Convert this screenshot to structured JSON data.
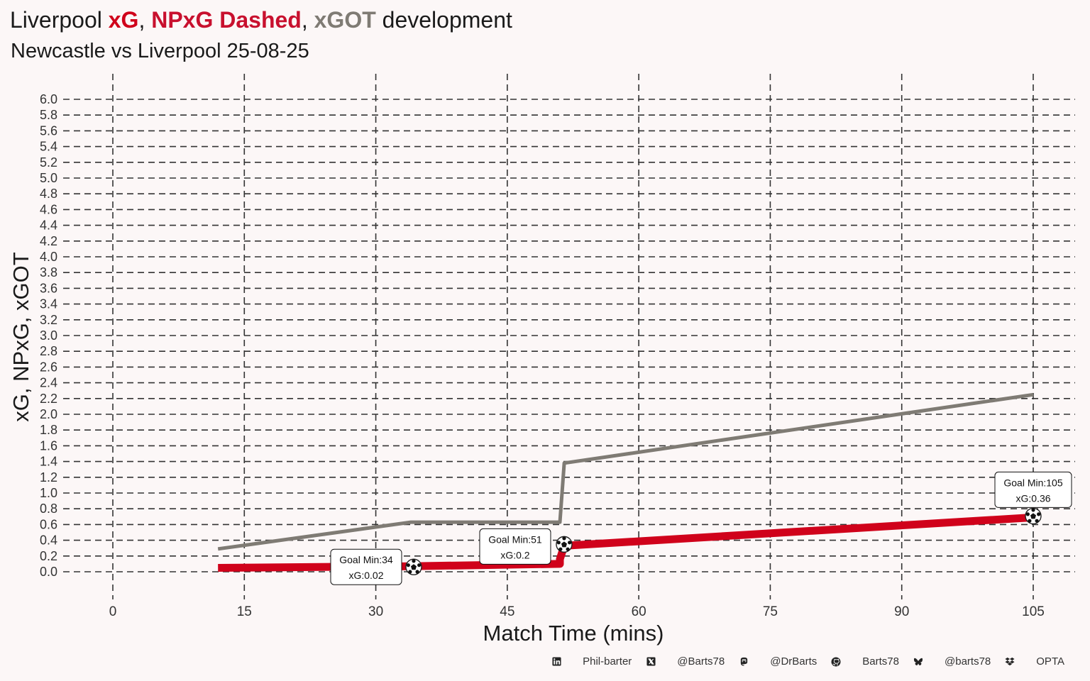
{
  "title": {
    "prefix": "Liverpool ",
    "xg_label": "xG",
    "sep1": ", ",
    "npxg_label": "NPxG Dashed",
    "sep2": ", ",
    "xgot_label": "xGOT",
    "suffix": " development"
  },
  "subtitle": "Newcastle vs Liverpool 25-08-25",
  "colors": {
    "background": "#fcf7f7",
    "xg": "#d0021b",
    "npxg": "#c8102e",
    "xgot": "#7f7b74",
    "grid": "#333333",
    "text": "#1a1a1a"
  },
  "chart_data": {
    "type": "line",
    "xlabel": "Match Time (mins)",
    "ylabel": "xG, NPxG, xGOT",
    "xlim": [
      0,
      105
    ],
    "ylim": [
      0,
      6
    ],
    "x_ticks": [
      0,
      15,
      30,
      45,
      60,
      75,
      90,
      105
    ],
    "y_ticks": [
      0.0,
      0.2,
      0.4,
      0.6,
      0.8,
      1.0,
      1.2,
      1.4,
      1.6,
      1.8,
      2.0,
      2.2,
      2.4,
      2.6,
      2.8,
      3.0,
      3.2,
      3.4,
      3.6,
      3.8,
      4.0,
      4.2,
      4.4,
      4.6,
      4.8,
      5.0,
      5.2,
      5.4,
      5.6,
      5.8,
      6.0
    ],
    "grid": true,
    "grid_style": "dashed",
    "series": [
      {
        "name": "xG",
        "x": [
          12,
          34,
          51,
          51,
          51.5,
          105
        ],
        "y": [
          0.05,
          0.07,
          0.1,
          0.16,
          0.33,
          0.69
        ]
      },
      {
        "name": "xGOT",
        "x": [
          12,
          34,
          51,
          51,
          51.5,
          105
        ],
        "y": [
          0.29,
          0.63,
          0.63,
          0.63,
          1.38,
          2.25
        ]
      }
    ],
    "goals": [
      {
        "minute": 34,
        "xg_value": 0.07,
        "label_line1": "Goal Min:34",
        "label_line2": "xG:0.02"
      },
      {
        "minute": 51,
        "xg_value": 0.33,
        "label_line1": "Goal Min:51",
        "label_line2": "xG:0.2"
      },
      {
        "minute": 105,
        "xg_value": 0.69,
        "label_line1": "Goal Min:105",
        "label_line2": "xG:0.36"
      }
    ]
  },
  "footer": {
    "items": [
      {
        "icon": "linkedin-icon",
        "label": "Phil-barter"
      },
      {
        "icon": "x-twitter-icon",
        "label": "@Barts78"
      },
      {
        "icon": "mastodon-icon",
        "label": "@DrBarts"
      },
      {
        "icon": "github-icon",
        "label": "Barts78"
      },
      {
        "icon": "bluesky-icon",
        "label": "@barts78"
      },
      {
        "icon": "dropbox-icon",
        "label": "OPTA"
      }
    ]
  }
}
